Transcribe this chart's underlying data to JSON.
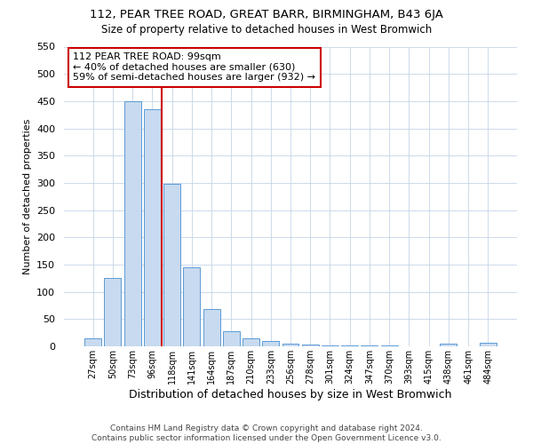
{
  "title": "112, PEAR TREE ROAD, GREAT BARR, BIRMINGHAM, B43 6JA",
  "subtitle": "Size of property relative to detached houses in West Bromwich",
  "xlabel": "Distribution of detached houses by size in West Bromwich",
  "ylabel": "Number of detached properties",
  "bar_labels": [
    "27sqm",
    "50sqm",
    "73sqm",
    "96sqm",
    "118sqm",
    "141sqm",
    "164sqm",
    "187sqm",
    "210sqm",
    "233sqm",
    "256sqm",
    "278sqm",
    "301sqm",
    "324sqm",
    "347sqm",
    "370sqm",
    "393sqm",
    "415sqm",
    "438sqm",
    "461sqm",
    "484sqm"
  ],
  "bar_values": [
    15,
    125,
    450,
    435,
    298,
    145,
    68,
    28,
    15,
    9,
    5,
    4,
    1,
    1,
    1,
    1,
    0,
    0,
    5,
    0,
    6
  ],
  "bar_color": "#c8daef",
  "bar_edge_color": "#5b9bd5",
  "property_line_x": 3.5,
  "annotation_text": "112 PEAR TREE ROAD: 99sqm\n← 40% of detached houses are smaller (630)\n59% of semi-detached houses are larger (932) →",
  "annotation_box_color": "#ffffff",
  "annotation_box_edge_color": "#cc0000",
  "vline_color": "#cc0000",
  "ylim": [
    0,
    550
  ],
  "yticks": [
    0,
    50,
    100,
    150,
    200,
    250,
    300,
    350,
    400,
    450,
    500,
    550
  ],
  "footer_line1": "Contains HM Land Registry data © Crown copyright and database right 2024.",
  "footer_line2": "Contains public sector information licensed under the Open Government Licence v3.0.",
  "bg_color": "#ffffff",
  "grid_color": "#c5d5e8",
  "title_fontsize": 9.5,
  "subtitle_fontsize": 8.5,
  "ylabel_fontsize": 8,
  "xlabel_fontsize": 9,
  "ytick_fontsize": 8,
  "xtick_fontsize": 7,
  "footer_fontsize": 6.5,
  "annot_fontsize": 8
}
